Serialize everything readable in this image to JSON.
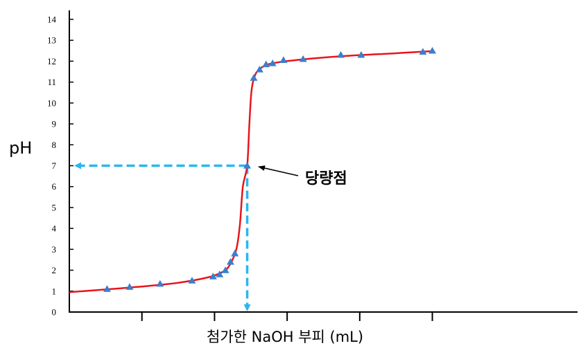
{
  "chart_data": {
    "type": "line",
    "title": "",
    "xlabel": "첨가한 NaOH 부피 (mL)",
    "ylabel": "pH",
    "ylim": [
      0,
      14
    ],
    "yticks": [
      "0",
      "1",
      "2",
      "3",
      "4",
      "5",
      "6",
      "7",
      "8",
      "9",
      "10",
      "11",
      "12",
      "13",
      "14"
    ],
    "xlim": [
      0,
      70
    ],
    "xticks": [
      10,
      20,
      30,
      40,
      50
    ],
    "x_tick_labels_shown": false,
    "grid": false,
    "series": [
      {
        "type": "markers",
        "color": "#3a7fd0",
        "marker": "triangle",
        "points": [
          [
            5.2,
            1.1
          ],
          [
            8.3,
            1.2
          ],
          [
            12.5,
            1.35
          ],
          [
            16.9,
            1.5
          ],
          [
            19.8,
            1.7
          ],
          [
            20.7,
            1.8
          ],
          [
            21.5,
            2.0
          ],
          [
            22.2,
            2.4
          ],
          [
            22.8,
            2.8
          ],
          [
            24.5,
            7.0
          ],
          [
            25.4,
            11.2
          ],
          [
            26.2,
            11.6
          ],
          [
            27.1,
            11.85
          ],
          [
            28.0,
            11.9
          ],
          [
            29.5,
            12.05
          ],
          [
            32.2,
            12.1
          ],
          [
            37.4,
            12.3
          ],
          [
            40.2,
            12.3
          ],
          [
            48.7,
            12.45
          ],
          [
            50.0,
            12.5
          ]
        ]
      },
      {
        "type": "curve",
        "color": "#e8141c",
        "points": [
          [
            0,
            0.95
          ],
          [
            5,
            1.08
          ],
          [
            10,
            1.22
          ],
          [
            15,
            1.4
          ],
          [
            19,
            1.65
          ],
          [
            21,
            1.9
          ],
          [
            22,
            2.2
          ],
          [
            23,
            3.0
          ],
          [
            23.5,
            4.2
          ],
          [
            23.9,
            6.0
          ],
          [
            24.5,
            7.0
          ],
          [
            24.8,
            9.0
          ],
          [
            25.1,
            10.6
          ],
          [
            25.6,
            11.35
          ],
          [
            26.5,
            11.7
          ],
          [
            28,
            11.9
          ],
          [
            32,
            12.08
          ],
          [
            38,
            12.25
          ],
          [
            45,
            12.38
          ],
          [
            50,
            12.48
          ]
        ]
      }
    ],
    "annotations": [
      {
        "text": "당량점",
        "point": [
          24.5,
          7.0
        ],
        "arrow": true
      }
    ],
    "guides": {
      "color": "#29b6f0",
      "style": "dashed",
      "point": [
        24.5,
        7.0
      ]
    },
    "axis_color": "#000000"
  }
}
